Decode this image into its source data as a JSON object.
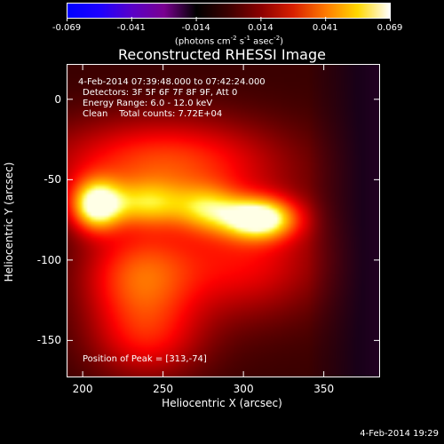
{
  "colorbar": {
    "labels": [
      "-0.069",
      "-0.041",
      "-0.014",
      "0.014",
      "0.041",
      "0.069"
    ],
    "unit_text": "(photons cm",
    "unit_exp1": "-2",
    "unit_mid": " s",
    "unit_exp2": "-1",
    "unit_mid2": " asec",
    "unit_exp3": "-2",
    "unit_end": ")",
    "gradient_colors": [
      "#0000ff",
      "#1e00ff",
      "#5a00c8",
      "#7a0090",
      "#000000",
      "#3c0000",
      "#8c0000",
      "#d82000",
      "#ff7a00",
      "#ffd800",
      "#ffffff"
    ]
  },
  "title": "Reconstructed RHESSI Image",
  "annotation": {
    "line1": "4-Feb-2014 07:39:48.000 to 07:42:24.000",
    "line2": "Detectors: 3F 5F 6F 7F 8F 9F, Att 0",
    "line3": "Energy Range: 6.0 - 12.0 keV",
    "line4": "Clean    Total counts: 7.72E+04",
    "peak": "Position of Peak = [313,-74]"
  },
  "x_axis": {
    "label": "Heliocentric X (arcsec)",
    "ticks": [
      "200",
      "250",
      "300",
      "350"
    ],
    "tick_values": [
      200,
      250,
      300,
      350
    ],
    "range": [
      190,
      385
    ]
  },
  "y_axis": {
    "label": "Heliocentric Y (arcsec)",
    "ticks": [
      "0",
      "-50",
      "-100",
      "-150"
    ],
    "tick_values": [
      0,
      -50,
      -100,
      -150
    ],
    "range": [
      -173,
      22
    ]
  },
  "image_sources": [
    {
      "x": 208,
      "y": -66,
      "amp": 0.95,
      "sx": 11,
      "sy": 11
    },
    {
      "x": 240,
      "y": -65,
      "amp": 0.55,
      "sx": 18,
      "sy": 10
    },
    {
      "x": 310,
      "y": -74,
      "amp": 1.0,
      "sx": 16,
      "sy": 9
    },
    {
      "x": 278,
      "y": -68,
      "amp": 0.5,
      "sx": 14,
      "sy": 10
    },
    {
      "x": 250,
      "y": -40,
      "amp": 0.55,
      "sx": 50,
      "sy": 20
    },
    {
      "x": 235,
      "y": -110,
      "amp": 0.55,
      "sx": 25,
      "sy": 22
    },
    {
      "x": 300,
      "y": -100,
      "amp": 0.4,
      "sx": 35,
      "sy": 25
    },
    {
      "x": 240,
      "y": -150,
      "amp": 0.35,
      "sx": 25,
      "sy": 18
    }
  ],
  "footer_date": "4-Feb-2014 19:29"
}
